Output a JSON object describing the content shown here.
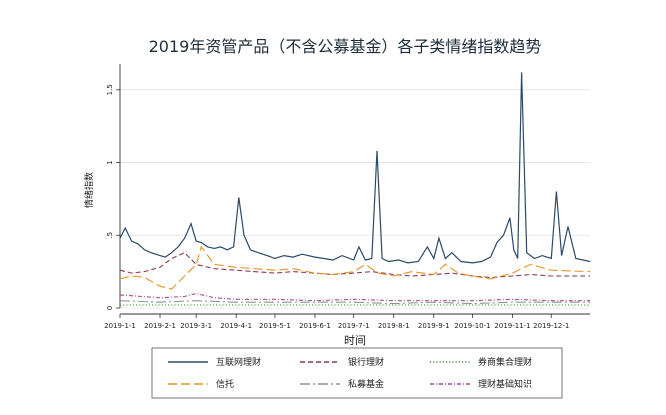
{
  "chart_data": {
    "type": "line",
    "title": "2019年资管产品（不含公募基金）各子类情绪指数趋势",
    "xlabel": "时间",
    "ylabel": "情绪指数",
    "ylim": [
      0,
      1.65
    ],
    "yticks": [
      {
        "value": 0,
        "label": "0"
      },
      {
        "value": 0.5,
        "label": ".5"
      },
      {
        "value": 1,
        "label": "1"
      },
      {
        "value": 1.5,
        "label": "1.5"
      }
    ],
    "xticks": [
      {
        "date": "2019-01-01",
        "label": "2019-1-1"
      },
      {
        "date": "2019-02-01",
        "label": "2019-2-1"
      },
      {
        "date": "2019-03-01",
        "label": "2019-3-1"
      },
      {
        "date": "2019-04-01",
        "label": "2019-4-1"
      },
      {
        "date": "2019-05-01",
        "label": "2019-5-1"
      },
      {
        "date": "2019-06-01",
        "label": "2019-6-1"
      },
      {
        "date": "2019-07-01",
        "label": "2019-7-1"
      },
      {
        "date": "2019-08-01",
        "label": "2019-8-1"
      },
      {
        "date": "2019-09-01",
        "label": "2019-9-1"
      },
      {
        "date": "2019-10-01",
        "label": "2019-10-1"
      },
      {
        "date": "2019-11-01",
        "label": "2019-11-1"
      },
      {
        "date": "2019-12-01",
        "label": "2019-12-1"
      }
    ],
    "xrange": [
      "2019-01-01",
      "2019-12-31"
    ],
    "grid": "horizontal",
    "legend_position": "bottom",
    "series": [
      {
        "name": "互联网理财",
        "color": "#2b4a66",
        "style": "solid",
        "points": [
          [
            "2019-01-01",
            0.48
          ],
          [
            "2019-01-05",
            0.55
          ],
          [
            "2019-01-10",
            0.46
          ],
          [
            "2019-01-15",
            0.44
          ],
          [
            "2019-01-20",
            0.4
          ],
          [
            "2019-01-25",
            0.38
          ],
          [
            "2019-02-01",
            0.36
          ],
          [
            "2019-02-05",
            0.35
          ],
          [
            "2019-02-10",
            0.38
          ],
          [
            "2019-02-15",
            0.42
          ],
          [
            "2019-02-20",
            0.48
          ],
          [
            "2019-02-25",
            0.58
          ],
          [
            "2019-03-01",
            0.46
          ],
          [
            "2019-03-05",
            0.45
          ],
          [
            "2019-03-10",
            0.42
          ],
          [
            "2019-03-15",
            0.41
          ],
          [
            "2019-03-20",
            0.42
          ],
          [
            "2019-03-25",
            0.4
          ],
          [
            "2019-03-30",
            0.42
          ],
          [
            "2019-04-03",
            0.76
          ],
          [
            "2019-04-07",
            0.5
          ],
          [
            "2019-04-12",
            0.4
          ],
          [
            "2019-04-18",
            0.38
          ],
          [
            "2019-04-25",
            0.36
          ],
          [
            "2019-05-01",
            0.34
          ],
          [
            "2019-05-08",
            0.36
          ],
          [
            "2019-05-15",
            0.35
          ],
          [
            "2019-05-22",
            0.37
          ],
          [
            "2019-06-01",
            0.35
          ],
          [
            "2019-06-08",
            0.34
          ],
          [
            "2019-06-15",
            0.33
          ],
          [
            "2019-06-22",
            0.36
          ],
          [
            "2019-07-01",
            0.33
          ],
          [
            "2019-07-05",
            0.42
          ],
          [
            "2019-07-10",
            0.33
          ],
          [
            "2019-07-15",
            0.34
          ],
          [
            "2019-07-19",
            1.08
          ],
          [
            "2019-07-23",
            0.34
          ],
          [
            "2019-07-28",
            0.32
          ],
          [
            "2019-08-05",
            0.33
          ],
          [
            "2019-08-12",
            0.31
          ],
          [
            "2019-08-20",
            0.32
          ],
          [
            "2019-08-27",
            0.42
          ],
          [
            "2019-09-01",
            0.34
          ],
          [
            "2019-09-05",
            0.48
          ],
          [
            "2019-09-10",
            0.34
          ],
          [
            "2019-09-15",
            0.38
          ],
          [
            "2019-09-22",
            0.32
          ],
          [
            "2019-10-01",
            0.31
          ],
          [
            "2019-10-08",
            0.32
          ],
          [
            "2019-10-15",
            0.35
          ],
          [
            "2019-10-20",
            0.45
          ],
          [
            "2019-10-25",
            0.5
          ],
          [
            "2019-10-30",
            0.62
          ],
          [
            "2019-11-02",
            0.4
          ],
          [
            "2019-11-05",
            0.34
          ],
          [
            "2019-11-08",
            1.62
          ],
          [
            "2019-11-12",
            0.38
          ],
          [
            "2019-11-18",
            0.34
          ],
          [
            "2019-11-24",
            0.36
          ],
          [
            "2019-12-01",
            0.34
          ],
          [
            "2019-12-05",
            0.8
          ],
          [
            "2019-12-09",
            0.36
          ],
          [
            "2019-12-14",
            0.56
          ],
          [
            "2019-12-20",
            0.34
          ],
          [
            "2019-12-31",
            0.32
          ]
        ]
      },
      {
        "name": "银行理财",
        "color": "#8b3a5a",
        "style": "dash",
        "points": [
          [
            "2019-01-01",
            0.26
          ],
          [
            "2019-01-10",
            0.24
          ],
          [
            "2019-01-20",
            0.25
          ],
          [
            "2019-02-01",
            0.28
          ],
          [
            "2019-02-10",
            0.34
          ],
          [
            "2019-02-20",
            0.38
          ],
          [
            "2019-03-01",
            0.3
          ],
          [
            "2019-03-15",
            0.27
          ],
          [
            "2019-04-01",
            0.26
          ],
          [
            "2019-04-15",
            0.25
          ],
          [
            "2019-05-01",
            0.24
          ],
          [
            "2019-05-15",
            0.25
          ],
          [
            "2019-06-01",
            0.24
          ],
          [
            "2019-06-15",
            0.23
          ],
          [
            "2019-07-01",
            0.24
          ],
          [
            "2019-07-15",
            0.25
          ],
          [
            "2019-08-01",
            0.23
          ],
          [
            "2019-08-15",
            0.22
          ],
          [
            "2019-09-01",
            0.23
          ],
          [
            "2019-09-15",
            0.24
          ],
          [
            "2019-10-01",
            0.22
          ],
          [
            "2019-10-15",
            0.21
          ],
          [
            "2019-11-01",
            0.22
          ],
          [
            "2019-11-15",
            0.23
          ],
          [
            "2019-12-01",
            0.22
          ],
          [
            "2019-12-31",
            0.22
          ]
        ]
      },
      {
        "name": "券商集合理财",
        "color": "#4a9a4a",
        "style": "dot",
        "points": [
          [
            "2019-01-01",
            0.02
          ],
          [
            "2019-03-01",
            0.02
          ],
          [
            "2019-05-01",
            0.02
          ],
          [
            "2019-07-01",
            0.02
          ],
          [
            "2019-09-01",
            0.02
          ],
          [
            "2019-11-01",
            0.02
          ],
          [
            "2019-12-31",
            0.02
          ]
        ]
      },
      {
        "name": "信托",
        "color": "#e8941e",
        "style": "longdash",
        "points": [
          [
            "2019-01-01",
            0.2
          ],
          [
            "2019-01-10",
            0.22
          ],
          [
            "2019-01-20",
            0.21
          ],
          [
            "2019-02-01",
            0.15
          ],
          [
            "2019-02-10",
            0.13
          ],
          [
            "2019-02-20",
            0.22
          ],
          [
            "2019-03-01",
            0.3
          ],
          [
            "2019-03-05",
            0.42
          ],
          [
            "2019-03-15",
            0.3
          ],
          [
            "2019-04-01",
            0.28
          ],
          [
            "2019-04-15",
            0.27
          ],
          [
            "2019-05-01",
            0.26
          ],
          [
            "2019-05-15",
            0.27
          ],
          [
            "2019-06-01",
            0.24
          ],
          [
            "2019-06-15",
            0.23
          ],
          [
            "2019-07-01",
            0.25
          ],
          [
            "2019-07-10",
            0.3
          ],
          [
            "2019-07-20",
            0.24
          ],
          [
            "2019-08-01",
            0.22
          ],
          [
            "2019-08-15",
            0.25
          ],
          [
            "2019-09-01",
            0.23
          ],
          [
            "2019-09-10",
            0.3
          ],
          [
            "2019-09-20",
            0.24
          ],
          [
            "2019-10-01",
            0.22
          ],
          [
            "2019-10-15",
            0.2
          ],
          [
            "2019-11-01",
            0.24
          ],
          [
            "2019-11-15",
            0.3
          ],
          [
            "2019-12-01",
            0.26
          ],
          [
            "2019-12-31",
            0.25
          ]
        ]
      },
      {
        "name": "私募基金",
        "color": "#8a9a8a",
        "style": "longdashdot",
        "points": [
          [
            "2019-01-01",
            0.05
          ],
          [
            "2019-02-01",
            0.04
          ],
          [
            "2019-03-01",
            0.05
          ],
          [
            "2019-04-01",
            0.04
          ],
          [
            "2019-05-01",
            0.04
          ],
          [
            "2019-06-01",
            0.04
          ],
          [
            "2019-07-01",
            0.04
          ],
          [
            "2019-08-01",
            0.03
          ],
          [
            "2019-09-01",
            0.04
          ],
          [
            "2019-10-01",
            0.03
          ],
          [
            "2019-11-01",
            0.04
          ],
          [
            "2019-12-01",
            0.04
          ],
          [
            "2019-12-31",
            0.04
          ]
        ]
      },
      {
        "name": "理财基础知识",
        "color": "#b04a8a",
        "style": "dashdot",
        "points": [
          [
            "2019-01-01",
            0.09
          ],
          [
            "2019-02-01",
            0.07
          ],
          [
            "2019-02-20",
            0.08
          ],
          [
            "2019-03-01",
            0.1
          ],
          [
            "2019-03-15",
            0.07
          ],
          [
            "2019-04-01",
            0.06
          ],
          [
            "2019-05-01",
            0.06
          ],
          [
            "2019-06-01",
            0.05
          ],
          [
            "2019-07-01",
            0.06
          ],
          [
            "2019-08-01",
            0.05
          ],
          [
            "2019-09-01",
            0.05
          ],
          [
            "2019-10-01",
            0.05
          ],
          [
            "2019-11-01",
            0.06
          ],
          [
            "2019-12-01",
            0.05
          ],
          [
            "2019-12-31",
            0.05
          ]
        ]
      }
    ]
  }
}
